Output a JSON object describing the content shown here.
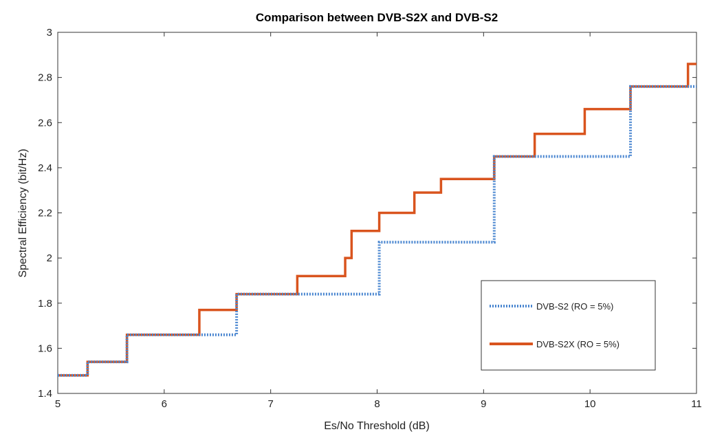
{
  "chart_data": {
    "type": "line",
    "title": "Comparison between DVB-S2X and DVB-S2",
    "xlabel": "Es/No Threshold (dB)",
    "ylabel": "Spectral Efficiency (bit/Hz)",
    "xlim": [
      5,
      11
    ],
    "ylim": [
      1.4,
      3.0
    ],
    "x_ticks": [
      5,
      6,
      7,
      8,
      9,
      10,
      11
    ],
    "y_ticks": [
      1.4,
      1.6,
      1.8,
      2.0,
      2.2,
      2.4,
      2.6,
      2.8,
      3.0
    ],
    "x_tick_labels": [
      "5",
      "6",
      "7",
      "8",
      "9",
      "10",
      "11"
    ],
    "y_tick_labels": [
      "1.4",
      "1.6",
      "1.8",
      "2",
      "2.2",
      "2.4",
      "2.6",
      "2.8",
      "3"
    ],
    "grid": false,
    "legend_position": "bottom-right",
    "series": [
      {
        "name": "DVB-S2 (RO = 5%)",
        "color": "#4a86d0",
        "style": "dotted",
        "step": "post",
        "x": [
          5.0,
          5.28,
          5.65,
          6.55,
          6.68,
          7.25,
          8.02,
          9.1,
          10.38,
          11.0
        ],
        "y": [
          1.48,
          1.54,
          1.66,
          1.66,
          1.84,
          1.84,
          2.07,
          2.45,
          2.76,
          2.76
        ]
      },
      {
        "name": "DVB-S2X (RO = 5%)",
        "color": "#d9541e",
        "style": "solid",
        "step": "post",
        "x": [
          5.0,
          5.28,
          5.65,
          6.33,
          6.68,
          7.25,
          7.7,
          7.76,
          8.02,
          8.35,
          8.6,
          9.1,
          9.48,
          9.95,
          10.38,
          10.92,
          11.0
        ],
        "y": [
          1.48,
          1.54,
          1.66,
          1.77,
          1.84,
          1.92,
          2.0,
          2.12,
          2.2,
          2.29,
          2.35,
          2.45,
          2.55,
          2.66,
          2.76,
          2.86,
          2.86
        ]
      }
    ]
  }
}
